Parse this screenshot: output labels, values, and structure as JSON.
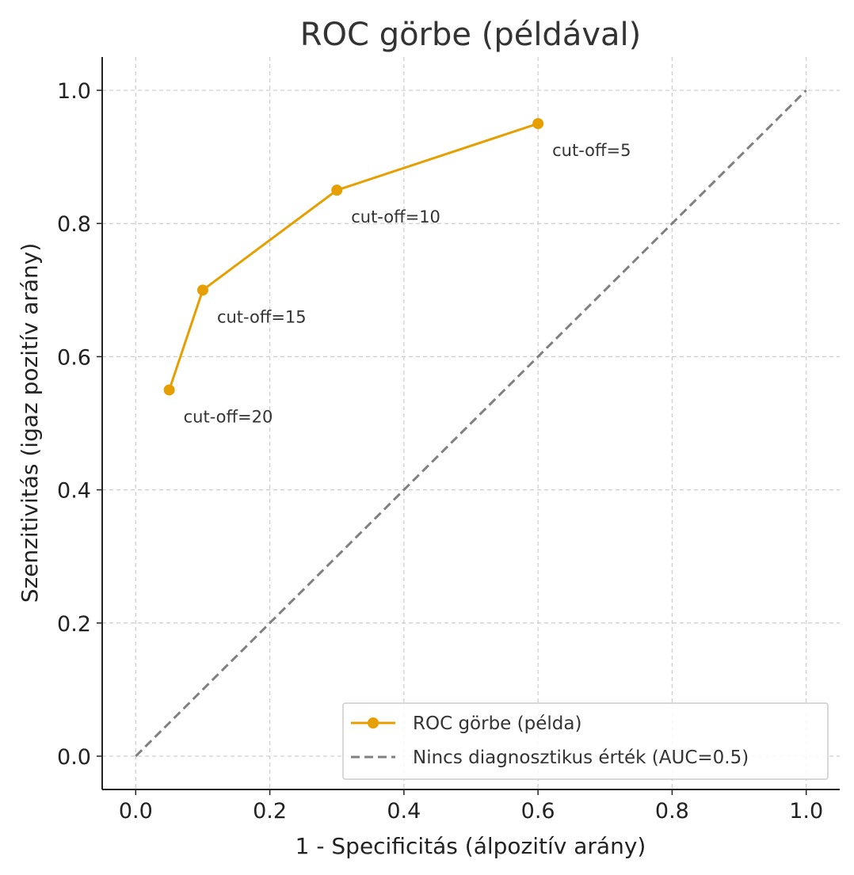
{
  "chart_data": {
    "type": "line",
    "title": "ROC görbe (példával)",
    "xlabel": "1 - Specificitás (álpozitív arány)",
    "ylabel": "Szenzitivitás (igaz pozitív arány)",
    "xlim": [
      -0.05,
      1.05
    ],
    "ylim": [
      -0.05,
      1.05
    ],
    "xticks": [
      0.0,
      0.2,
      0.4,
      0.6,
      0.8,
      1.0
    ],
    "yticks": [
      0.0,
      0.2,
      0.4,
      0.6,
      0.8,
      1.0
    ],
    "xtick_labels": [
      "0.0",
      "0.2",
      "0.4",
      "0.6",
      "0.8",
      "1.0"
    ],
    "ytick_labels": [
      "0.0",
      "0.2",
      "0.4",
      "0.6",
      "0.8",
      "1.0"
    ],
    "grid": true,
    "legend_position": "bottom-right",
    "series": [
      {
        "name": "ROC görbe (példa)",
        "color": "#E69F00",
        "style": "solid",
        "marker": "circle",
        "points": [
          {
            "x": 0.05,
            "y": 0.55,
            "label": "cut-off=20"
          },
          {
            "x": 0.1,
            "y": 0.7,
            "label": "cut-off=15"
          },
          {
            "x": 0.3,
            "y": 0.85,
            "label": "cut-off=10"
          },
          {
            "x": 0.6,
            "y": 0.95,
            "label": "cut-off=5"
          }
        ]
      },
      {
        "name": "Nincs diagnosztikus érték (AUC=0.5)",
        "color": "#808080",
        "style": "dashed",
        "marker": "none",
        "points": [
          {
            "x": 0.0,
            "y": 0.0
          },
          {
            "x": 1.0,
            "y": 1.0
          }
        ]
      }
    ]
  }
}
